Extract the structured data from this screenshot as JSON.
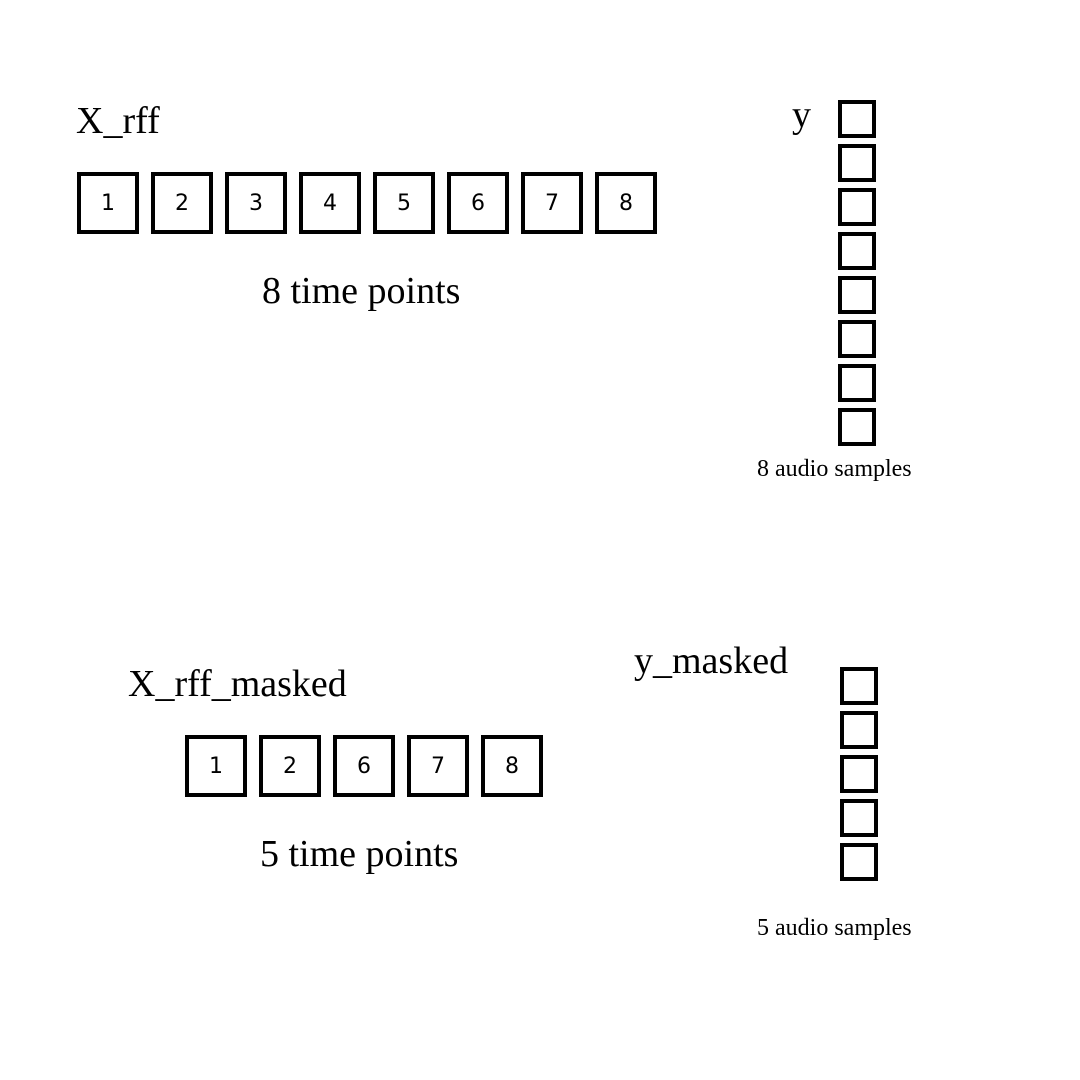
{
  "top": {
    "x_label": "X_rff",
    "x_cells": [
      "1",
      "2",
      "3",
      "4",
      "5",
      "6",
      "7",
      "8"
    ],
    "x_caption": "8 time points",
    "y_label": "y",
    "y_count": 8,
    "y_caption": "8 audio samples"
  },
  "bottom": {
    "x_label": "X_rff_masked",
    "x_cells": [
      "1",
      "2",
      "6",
      "7",
      "8"
    ],
    "x_caption": "5 time points",
    "y_label": "y_masked",
    "y_count": 5,
    "y_caption": "5 audio samples"
  }
}
